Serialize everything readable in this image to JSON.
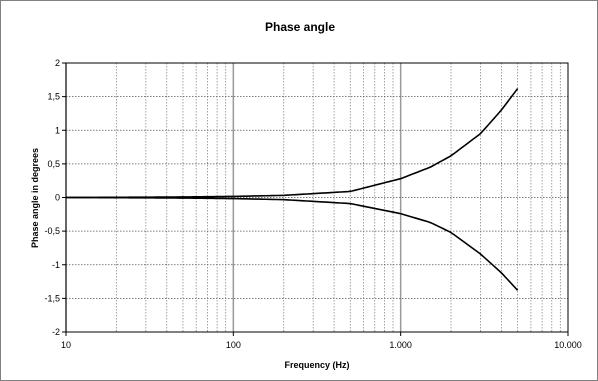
{
  "chart_data": {
    "type": "line",
    "title": "Phase angle",
    "xlabel": "Frequency (Hz)",
    "ylabel": "Phase angle in degrees",
    "x_scale": "log",
    "xlim": [
      10,
      10000
    ],
    "ylim": [
      -2,
      2
    ],
    "x_ticks": [
      10,
      100,
      1000,
      10000
    ],
    "x_tick_labels": [
      "10",
      "100",
      "1.000",
      "10.000"
    ],
    "y_ticks": [
      2,
      1.5,
      1,
      0.5,
      0,
      -0.5,
      -1,
      -1.5,
      -2
    ],
    "y_tick_labels": [
      "2",
      "1,5",
      "1",
      "0,5",
      "0",
      "-0,5",
      "-1",
      "-1,5",
      "-2"
    ],
    "grid": true,
    "line_color": "#000000",
    "series": [
      {
        "x": [
          10,
          20,
          50,
          100,
          200,
          500,
          1000,
          1500,
          2000,
          3000,
          4000,
          5000
        ],
        "values": [
          0,
          0.003,
          0.008,
          0.016,
          0.032,
          0.09,
          0.28,
          0.45,
          0.62,
          0.95,
          1.3,
          1.62
        ]
      },
      {
        "x": [
          10,
          20,
          50,
          100,
          200,
          500,
          1000,
          1500,
          2000,
          3000,
          4000,
          5000
        ],
        "values": [
          0,
          -0.003,
          -0.008,
          -0.016,
          -0.032,
          -0.09,
          -0.24,
          -0.37,
          -0.52,
          -0.84,
          -1.12,
          -1.38
        ]
      }
    ]
  }
}
